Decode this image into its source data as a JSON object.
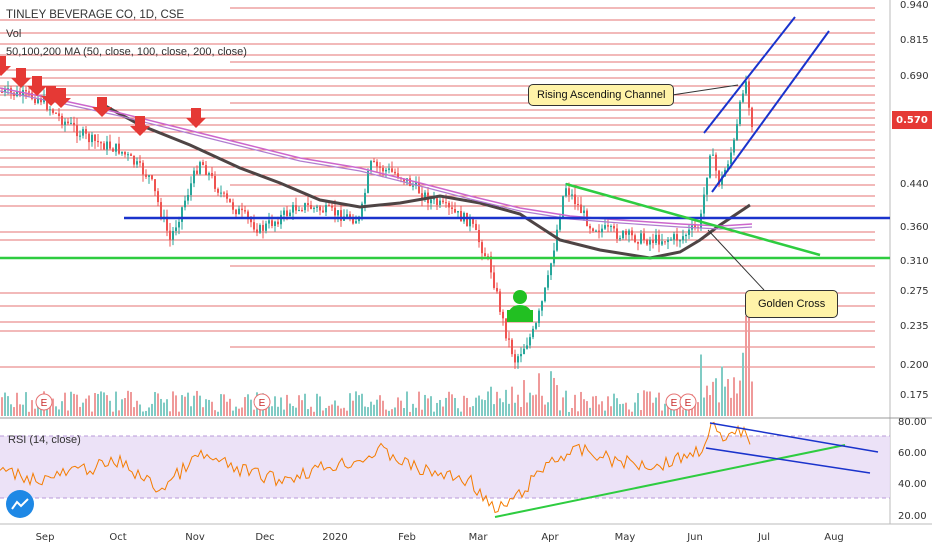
{
  "header": {
    "symbol_line": "TINLEY BEVERAGE CO, 1D, CSE",
    "vol_label": "Vol",
    "ma_label": "50,100,200 MA (50, close, 100, close, 200, close)"
  },
  "rsi_panel": {
    "label": "RSI (14, close)",
    "ticks": [
      "80.00",
      "60.00",
      "40.00",
      "20.00"
    ]
  },
  "price_axis": {
    "ticks": [
      "0.940",
      "0.815",
      "0.690",
      "0.570",
      "0.440",
      "0.360",
      "0.310",
      "0.275",
      "0.235",
      "0.200",
      "0.175"
    ],
    "last_price": "0.570",
    "last_price_color": "#e53935"
  },
  "time_axis": {
    "labels": [
      "Sep",
      "Oct",
      "Nov",
      "Dec",
      "2020",
      "Feb",
      "Mar",
      "Apr",
      "May",
      "Jun",
      "Jul",
      "Aug"
    ]
  },
  "annotations": {
    "channel_label": "Rising Ascending Channel",
    "golden_cross_label": "Golden Cross",
    "earnings_marker": "E"
  },
  "colors": {
    "support_line": "#2ecc40",
    "resistance_line": "#1a33cc",
    "ma_200": "#4e4444",
    "ma_purple": "#cc66cc",
    "rsi_line": "#f57c00",
    "arrow_red": "#e53935",
    "callout_bg": "#fff3a8"
  },
  "icons": {
    "sell_arrow": "red-down-arrow-icon",
    "buy_person": "green-person-icon",
    "earnings": "earnings-e-icon",
    "logo": "tradingview-logo-icon"
  }
}
